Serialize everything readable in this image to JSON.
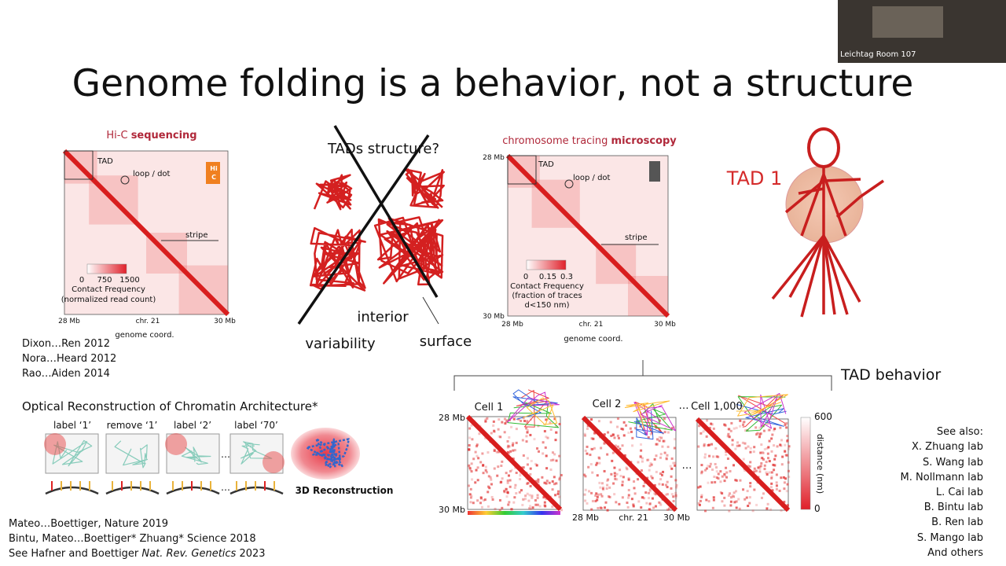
{
  "header": {
    "title": "Genome folding is a behavior, not a structure",
    "webcam_label": "Leichtag Room 107"
  },
  "hic": {
    "title": [
      "Hi-C ",
      "sequencing"
    ],
    "icon": [
      "Hi",
      "C"
    ],
    "labels": {
      "tad": "TAD",
      "loop": "loop / dot",
      "stripe": "stripe"
    },
    "colorbar_ticks": [
      "0",
      "750",
      "1500"
    ],
    "colorbar_title": [
      "Contact Frequency",
      "(normalized read count)"
    ],
    "x_ticks": [
      "28 Mb",
      "chr. 21",
      "30 Mb"
    ],
    "x_label": "genome coord."
  },
  "references": [
    "Dixon…Ren 2012",
    "Nora…Heard 2012",
    "Rao…Aiden 2014"
  ],
  "tads": {
    "question": "TADs structure?",
    "interior": "interior",
    "variability": "variability",
    "surface": "surface"
  },
  "tracing": {
    "title": [
      "chromosome tracing ",
      "microscopy"
    ],
    "y_ticks": [
      "28 Mb",
      "30 Mb"
    ],
    "labels": {
      "tad": "TAD",
      "loop": "loop / dot",
      "stripe": "stripe"
    },
    "colorbar_ticks": [
      "0",
      "0.15",
      "0.3"
    ],
    "colorbar_title": [
      "Contact Frequency",
      "(fraction of traces",
      "d<150 nm)"
    ],
    "x_ticks": [
      "28 Mb",
      "chr. 21",
      "30 Mb"
    ],
    "x_label": "genome coord."
  },
  "tad1": "TAD 1",
  "orca": {
    "title": "Optical Reconstruction of Chromatin Architecture*",
    "steps": [
      "label ‘1’",
      "remove ‘1’",
      "label ‘2’",
      "label ‘70’"
    ],
    "ellipsis": "…",
    "result": "3D Reconstruction"
  },
  "citations": [
    "Mateo…Boettiger, Nature 2019",
    "Bintu, Mateo…Boettiger* Zhuang* Science 2018"
  ],
  "review": {
    "prefix": "See Hafner and Boettiger ",
    "journal": "Nat. Rev. Genetics",
    "year": " 2023"
  },
  "behavior": {
    "title": "TAD behavior",
    "cells": [
      "Cell 1",
      "Cell 2",
      "Cell 1,000"
    ],
    "ellipsis": "…",
    "y_ticks": [
      "28 Mb",
      "30 Mb"
    ],
    "x_ticks": [
      "28 Mb",
      "chr. 21",
      "30 Mb"
    ],
    "colorbar_ticks": [
      "600",
      "0"
    ],
    "colorbar_title": "distance (nm)"
  },
  "see_also": {
    "title": "See also:",
    "labs": [
      "X. Zhuang lab",
      "S. Wang lab",
      "M. Nollmann lab",
      "L. Cai lab",
      "B. Bintu lab",
      "B. Ren lab",
      "S. Mango lab",
      "And others"
    ]
  }
}
